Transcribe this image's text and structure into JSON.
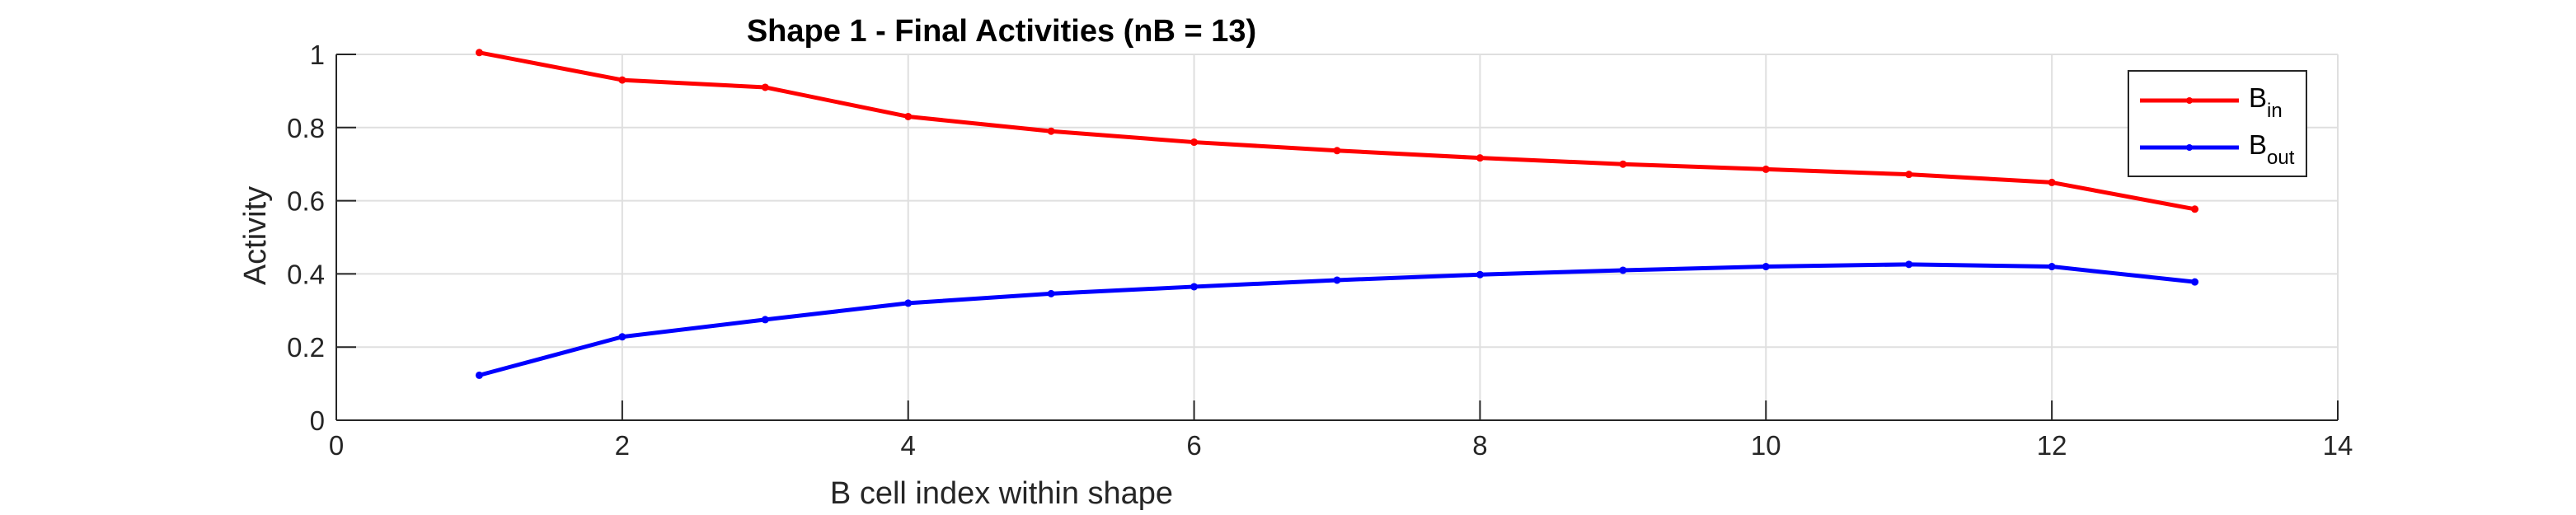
{
  "chart_data": {
    "type": "line",
    "title": "Shape 1 - Final Activities (nB = 13)",
    "xlabel": "B cell index within shape",
    "ylabel": "Activity",
    "xlim": [
      0,
      14
    ],
    "ylim": [
      0,
      1
    ],
    "xticks": [
      0,
      2,
      4,
      6,
      8,
      10,
      12,
      14
    ],
    "yticks": [
      0,
      0.2,
      0.4,
      0.6,
      0.8,
      1
    ],
    "xtick_labels": [
      "0",
      "2",
      "4",
      "6",
      "8",
      "10",
      "12",
      "14"
    ],
    "ytick_labels": [
      "0",
      "0.2",
      "0.4",
      "0.6",
      "0.8",
      "1"
    ],
    "grid": true,
    "legend_position": "top-right",
    "x": [
      1,
      2,
      3,
      4,
      5,
      6,
      7,
      8,
      9,
      10,
      11,
      12,
      13
    ],
    "series": [
      {
        "name": "B_in",
        "legend_main": "B",
        "legend_sub": "in",
        "color": "#ff0000",
        "values": [
          1.005,
          0.93,
          0.91,
          0.83,
          0.79,
          0.76,
          0.737,
          0.717,
          0.7,
          0.686,
          0.672,
          0.65,
          0.577
        ]
      },
      {
        "name": "B_out",
        "legend_main": "B",
        "legend_sub": "out",
        "color": "#0000ff",
        "values": [
          0.123,
          0.228,
          0.275,
          0.32,
          0.346,
          0.365,
          0.383,
          0.398,
          0.41,
          0.42,
          0.426,
          0.42,
          0.378
        ]
      }
    ]
  }
}
